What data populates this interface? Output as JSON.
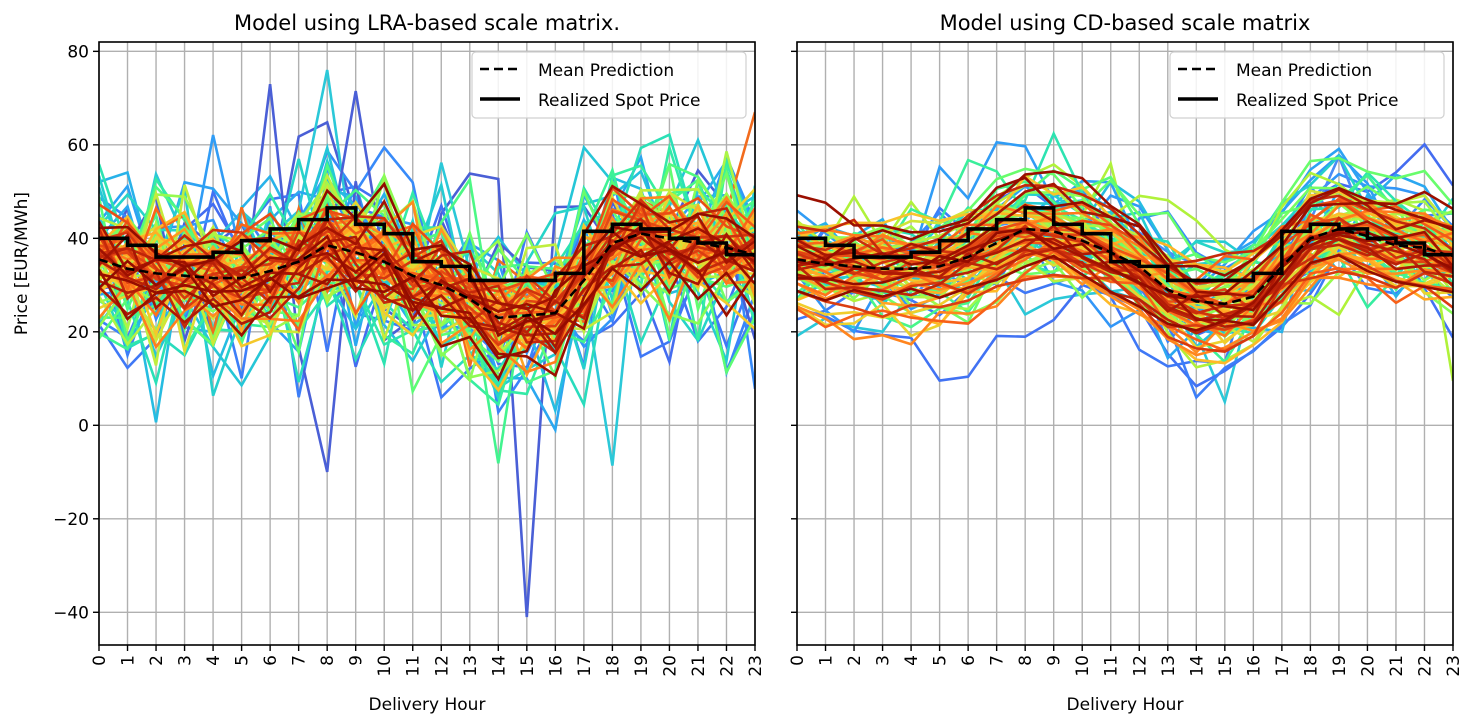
{
  "chart_data": [
    {
      "type": "line",
      "title": "Model using LRA-based scale matrix.",
      "xlabel": "Delivery Hour",
      "ylabel": "Price [EUR/MWh]",
      "x": [
        0,
        1,
        2,
        3,
        4,
        5,
        6,
        7,
        8,
        9,
        10,
        11,
        12,
        13,
        14,
        15,
        16,
        17,
        18,
        19,
        20,
        21,
        22,
        23
      ],
      "xticks": [
        "0",
        "1",
        "2",
        "3",
        "4",
        "5",
        "6",
        "7",
        "8",
        "9",
        "10",
        "11",
        "12",
        "13",
        "14",
        "15",
        "16",
        "17",
        "18",
        "19",
        "20",
        "21",
        "22",
        "23"
      ],
      "yticks": [
        "80",
        "60",
        "40",
        "20",
        "0",
        "−20",
        "−40"
      ],
      "ytick_values": [
        80,
        60,
        40,
        20,
        0,
        -20,
        -40
      ],
      "ylim": [
        -47,
        82
      ],
      "xlim": [
        0,
        23
      ],
      "grid": true,
      "legend": {
        "position": "top-right",
        "entries": [
          "Mean Prediction",
          "Realized Spot Price"
        ]
      },
      "colormap": "turbo",
      "sample_spread": "wide",
      "sample_count": 100,
      "series": [
        {
          "name": "Mean Prediction",
          "style": "dashed",
          "color": "#000000",
          "values": [
            35.5,
            33.5,
            32.5,
            32,
            31.5,
            31.5,
            33,
            35,
            38.5,
            37,
            35,
            32,
            30,
            27,
            23,
            23.5,
            24,
            31,
            39,
            41,
            40,
            39,
            38,
            36.5
          ]
        },
        {
          "name": "Realized Spot Price",
          "style": "step",
          "color": "#000000",
          "values": [
            40,
            38.5,
            36,
            36,
            37,
            39.5,
            42,
            44,
            46.5,
            43,
            41,
            35,
            34,
            31,
            31,
            31,
            32.5,
            41.5,
            43,
            42,
            40,
            39,
            36.5,
            36
          ]
        }
      ],
      "notable_samples": [
        {
          "hour": 15,
          "value": -41,
          "color": "#4a5fd6"
        },
        {
          "hour": 8,
          "value": 76,
          "color": "#2bc8d8"
        },
        {
          "hour": 6,
          "value": 73,
          "color": "#4a5fd6"
        },
        {
          "hour": 9,
          "value": 71.5,
          "color": "#4a5fd6"
        },
        {
          "hour": 23,
          "value": 67,
          "color": "#f26b1d"
        }
      ]
    },
    {
      "type": "line",
      "title": "Model using CD-based scale matrix",
      "xlabel": "Delivery Hour",
      "ylabel": "",
      "x": [
        0,
        1,
        2,
        3,
        4,
        5,
        6,
        7,
        8,
        9,
        10,
        11,
        12,
        13,
        14,
        15,
        16,
        17,
        18,
        19,
        20,
        21,
        22,
        23
      ],
      "xticks": [
        "0",
        "1",
        "2",
        "3",
        "4",
        "5",
        "6",
        "7",
        "8",
        "9",
        "10",
        "11",
        "12",
        "13",
        "14",
        "15",
        "16",
        "17",
        "18",
        "19",
        "20",
        "21",
        "22",
        "23"
      ],
      "yticks": [],
      "ytick_values": [
        80,
        60,
        40,
        20,
        0,
        -20,
        -40
      ],
      "ylim": [
        -47,
        82
      ],
      "xlim": [
        0,
        23
      ],
      "grid": true,
      "legend": {
        "position": "top-right",
        "entries": [
          "Mean Prediction",
          "Realized Spot Price"
        ]
      },
      "colormap": "turbo",
      "sample_spread": "narrow",
      "sample_count": 100,
      "series": [
        {
          "name": "Mean Prediction",
          "style": "dashed",
          "color": "#000000",
          "values": [
            35.5,
            34.5,
            34,
            33.5,
            33.5,
            34,
            36,
            39,
            42,
            41.5,
            39.5,
            37,
            34,
            29,
            26.5,
            26,
            27.5,
            34,
            40,
            42,
            40.5,
            38.5,
            38,
            36
          ]
        },
        {
          "name": "Realized Spot Price",
          "style": "step",
          "color": "#000000",
          "values": [
            40,
            38.5,
            36,
            36,
            37,
            39.5,
            42,
            44,
            46.5,
            43,
            41,
            35,
            34,
            31,
            31,
            31,
            32.5,
            41.5,
            43,
            42,
            40,
            39,
            36.5,
            36
          ]
        }
      ],
      "notable_samples": [
        {
          "hour": 15,
          "value": 5,
          "color": "#2bc8d8"
        },
        {
          "hour": 11,
          "value": 56,
          "color": "#b0f23a"
        },
        {
          "hour": 19,
          "value": 57.5,
          "color": "#4a8cf5"
        },
        {
          "hour": 23,
          "value": 9.5,
          "color": "#b0f23a"
        }
      ]
    }
  ]
}
